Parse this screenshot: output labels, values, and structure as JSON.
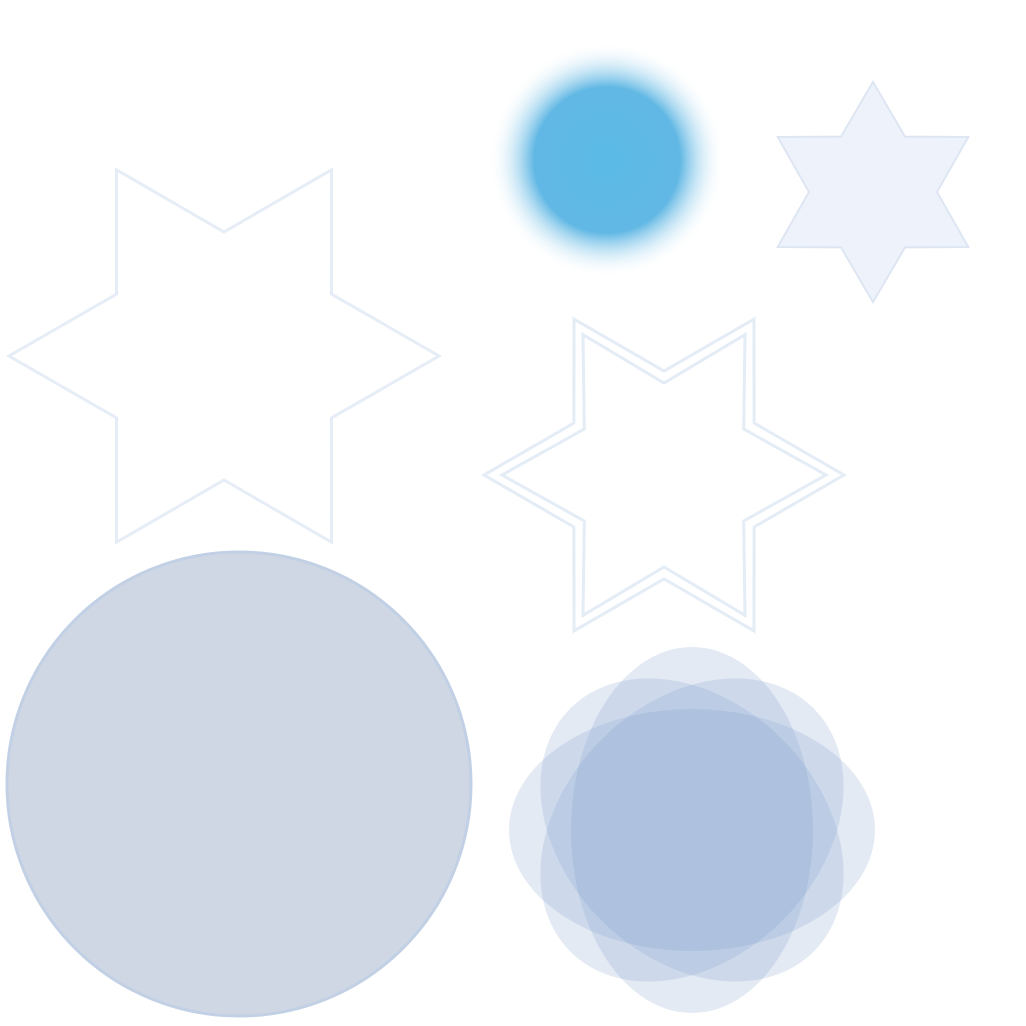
{
  "shapes": {
    "large_star": {
      "icon": "six-point-star-outline",
      "fill": "#ffffff",
      "stroke": "#e6edf6"
    },
    "blurred_circle": {
      "icon": "blurred-circle",
      "core": "#5bbbe6",
      "mid": "#62b8e4",
      "edge": "#ffffff"
    },
    "small_star": {
      "icon": "six-point-star-filled",
      "fill": "#eef2fa",
      "stroke": "#dde6f2"
    },
    "double_star": {
      "icon": "six-point-star-double-outline",
      "stroke": "#e4ecf6"
    },
    "big_circle": {
      "icon": "filled-circle",
      "fill": "#cfd7e4",
      "stroke": "#c1d0e4"
    },
    "petal_flower": {
      "icon": "overlapping-ellipses-flower",
      "fill": "#7fa1cb"
    }
  }
}
